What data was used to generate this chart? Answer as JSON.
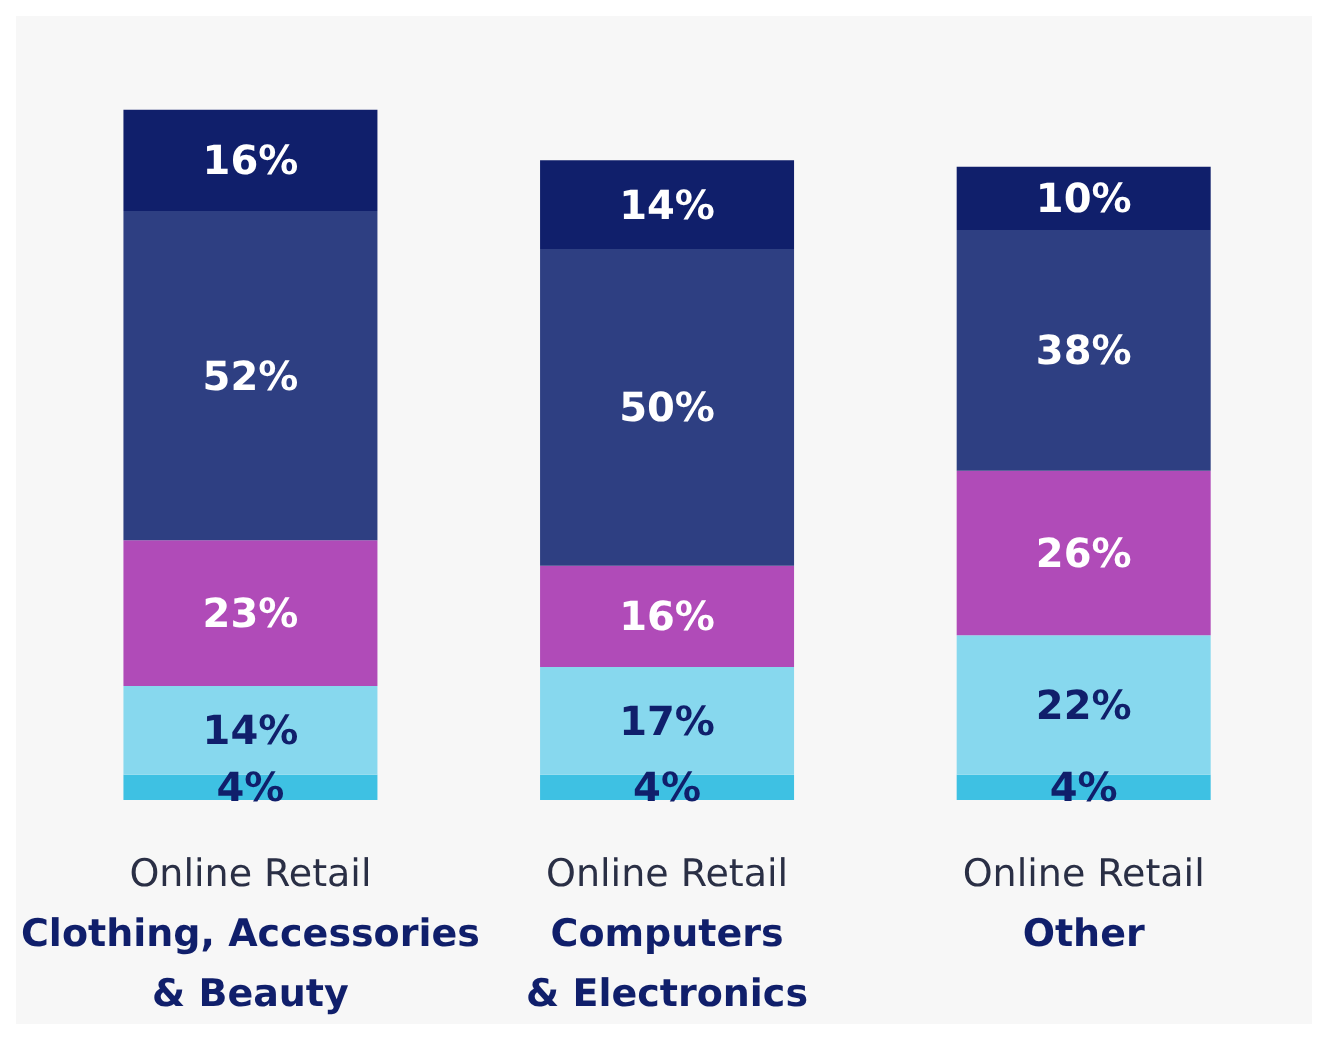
{
  "chart_data": {
    "type": "bar",
    "stacked": true,
    "categories": [
      "Online Retail\nClothing, Accessories\n& Beauty",
      "Online Retail\nComputers\n& Electronics",
      "Online Retail\nOther"
    ],
    "series": [
      {
        "color": "#3ec1e3",
        "values": [
          4,
          4,
          4
        ],
        "value_labels": [
          "4%",
          "4%",
          "4%"
        ]
      },
      {
        "color": "#87d8ee",
        "values": [
          14,
          17,
          22
        ],
        "value_labels": [
          "14%",
          "17%",
          "22%"
        ]
      },
      {
        "color": "#b04bb8",
        "values": [
          23,
          16,
          26
        ],
        "value_labels": [
          "23%",
          "16%",
          "26%"
        ]
      },
      {
        "color": "#2e3f82",
        "values": [
          52,
          50,
          38
        ],
        "value_labels": [
          "52%",
          "50%",
          "38%"
        ]
      },
      {
        "color": "#101f6b",
        "values": [
          16,
          14,
          10
        ],
        "value_labels": [
          "16%",
          "14%",
          "10%"
        ]
      }
    ]
  }
}
